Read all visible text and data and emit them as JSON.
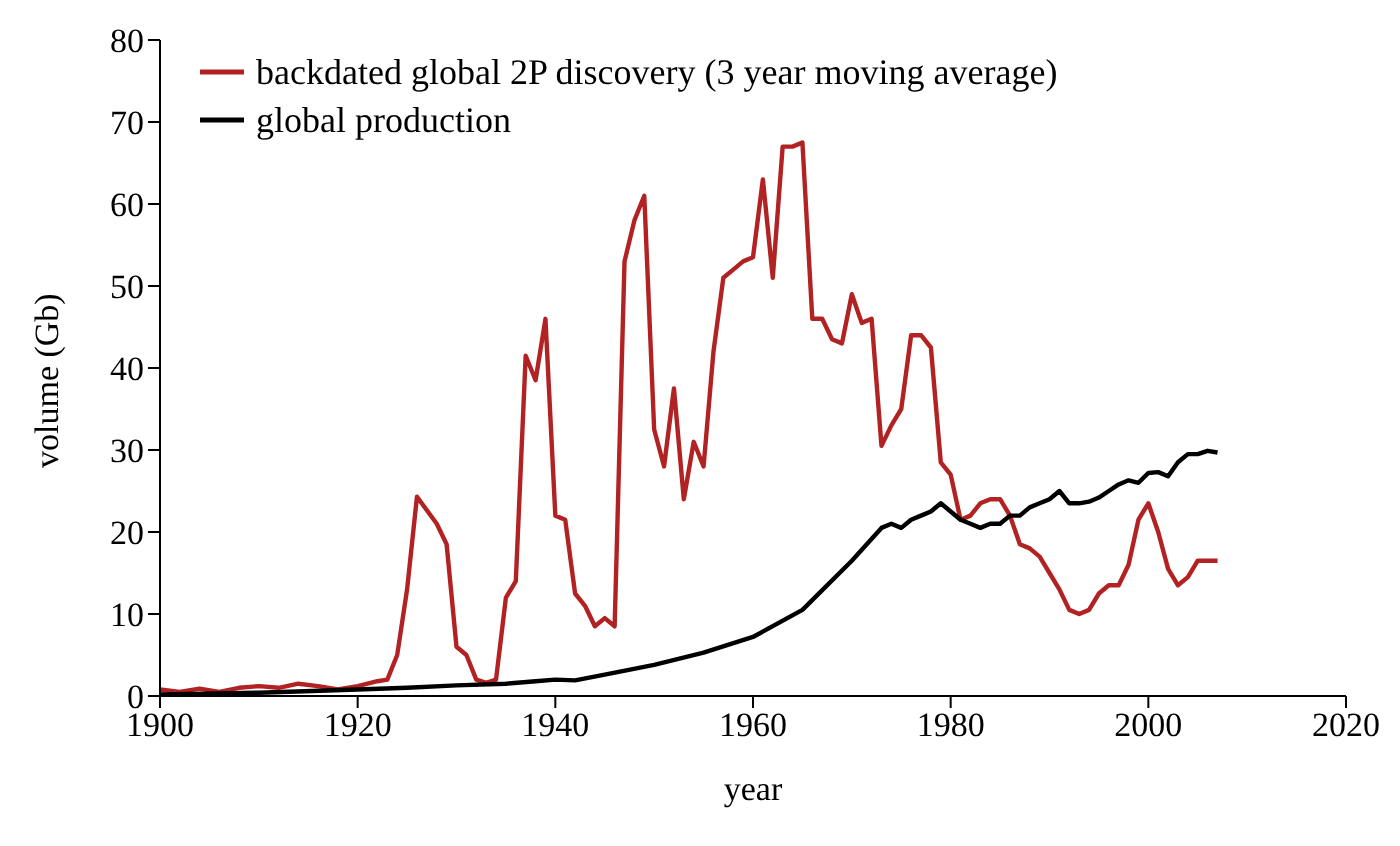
{
  "chart_data": {
    "type": "line",
    "xlabel": "year",
    "ylabel": "volume (Gb)",
    "xlim": [
      1900,
      2020
    ],
    "xticks": [
      1900,
      1920,
      1940,
      1960,
      1980,
      2000,
      2020
    ],
    "ylim": [
      0,
      80
    ],
    "yticks": [
      0,
      10,
      20,
      30,
      40,
      50,
      60,
      70,
      80
    ],
    "grid": false,
    "legend": "top left",
    "marker": "none",
    "line_style": "solid",
    "series": [
      {
        "name": "backdated global 2P discovery (3 year moving average)",
        "color": "#b22222",
        "x": [
          1900,
          1902,
          1904,
          1906,
          1908,
          1910,
          1912,
          1914,
          1916,
          1918,
          1920,
          1922,
          1923,
          1924,
          1925,
          1926,
          1928,
          1929,
          1930,
          1931,
          1932,
          1933,
          1934,
          1935,
          1936,
          1937,
          1938,
          1939,
          1940,
          1941,
          1942,
          1943,
          1944,
          1945,
          1946,
          1947,
          1948,
          1949,
          1950,
          1951,
          1952,
          1953,
          1954,
          1955,
          1956,
          1957,
          1958,
          1959,
          1960,
          1961,
          1962,
          1963,
          1964,
          1965,
          1966,
          1967,
          1968,
          1969,
          1970,
          1971,
          1972,
          1973,
          1974,
          1975,
          1976,
          1977,
          1978,
          1979,
          1980,
          1981,
          1982,
          1983,
          1984,
          1985,
          1986,
          1987,
          1988,
          1989,
          1990,
          1991,
          1992,
          1993,
          1994,
          1995,
          1996,
          1997,
          1998,
          1999,
          2000,
          2001,
          2002,
          2003,
          2004,
          2005,
          2006,
          2007
        ],
        "values": [
          0.8,
          0.5,
          0.9,
          0.5,
          1.0,
          1.2,
          1.0,
          1.5,
          1.2,
          0.8,
          1.2,
          1.8,
          2.0,
          5,
          13,
          24.3,
          21,
          18.5,
          6,
          5,
          2,
          1.6,
          2,
          12,
          14,
          41.5,
          38.5,
          46,
          22,
          21.5,
          12.5,
          11,
          8.5,
          9.5,
          8.5,
          53,
          58,
          61,
          32.5,
          28,
          37.5,
          24,
          31,
          28,
          42,
          51,
          52,
          53,
          53.5,
          63,
          51,
          67,
          67,
          67.5,
          46,
          46,
          43.5,
          43,
          49,
          45.5,
          46,
          30.5,
          33,
          35,
          44,
          44,
          42.5,
          28.5,
          27,
          21.5,
          22,
          23.5,
          24,
          24,
          22,
          18.5,
          18,
          17,
          15,
          13,
          10.5,
          10,
          10.5,
          12.5,
          13.5,
          13.5,
          16,
          21.5,
          23.5,
          20,
          15.5,
          13.5,
          14.5,
          16.5,
          16.5,
          16.5
        ]
      },
      {
        "name": "global production",
        "color": "#000000",
        "x": [
          1900,
          1910,
          1920,
          1925,
          1930,
          1935,
          1938,
          1940,
          1942,
          1945,
          1950,
          1955,
          1960,
          1965,
          1970,
          1973,
          1974,
          1975,
          1976,
          1977,
          1978,
          1979,
          1980,
          1981,
          1982,
          1983,
          1984,
          1985,
          1986,
          1987,
          1988,
          1989,
          1990,
          1991,
          1992,
          1993,
          1994,
          1995,
          1996,
          1997,
          1998,
          1999,
          2000,
          2001,
          2002,
          2003,
          2004,
          2005,
          2006,
          2007
        ],
        "values": [
          0.2,
          0.4,
          0.8,
          1.0,
          1.3,
          1.5,
          1.8,
          2.0,
          1.9,
          2.6,
          3.8,
          5.3,
          7.2,
          10.5,
          16.5,
          20.5,
          21,
          20.5,
          21.5,
          22,
          22.5,
          23.5,
          22.5,
          21.5,
          21,
          20.5,
          21,
          21,
          22,
          22,
          23,
          23.5,
          24,
          25,
          23.5,
          23.5,
          23.7,
          24.2,
          25,
          25.8,
          26.3,
          26,
          27.2,
          27.3,
          26.8,
          28.5,
          29.5,
          29.5,
          29.9,
          29.7
        ]
      }
    ]
  }
}
